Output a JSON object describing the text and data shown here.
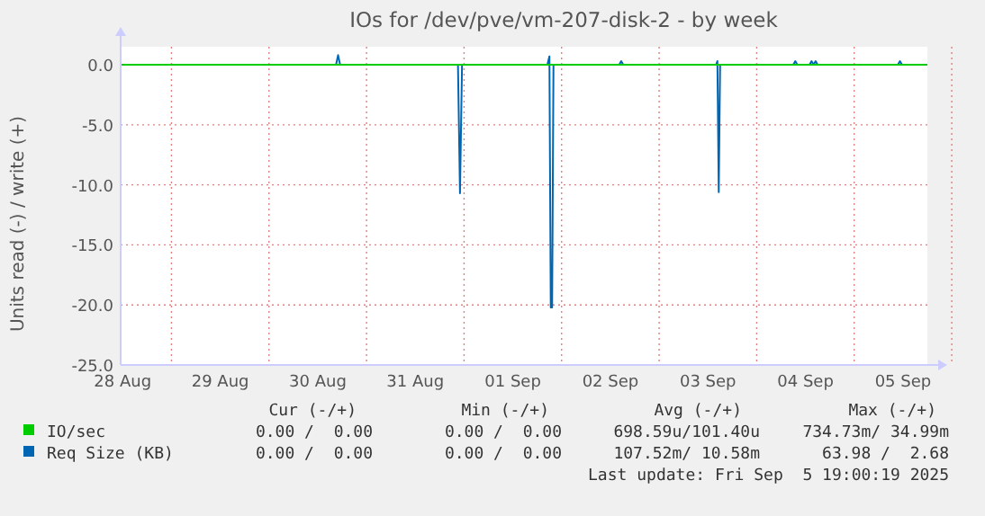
{
  "chart_data": {
    "type": "line",
    "title": "IOs for /dev/pve/vm-207-disk-2 - by week",
    "ylabel": "Units read (-) / write (+)",
    "xlim": [
      "2025-08-28T11:30",
      "2025-09-05T18:00"
    ],
    "xticks": [
      {
        "value": "2025-08-28T12:00",
        "label": "28 Aug"
      },
      {
        "value": "2025-08-29T12:00",
        "label": "29 Aug"
      },
      {
        "value": "2025-08-30T12:00",
        "label": "30 Aug"
      },
      {
        "value": "2025-08-31T12:00",
        "label": "31 Aug"
      },
      {
        "value": "2025-09-01T12:00",
        "label": "01 Sep"
      },
      {
        "value": "2025-09-02T12:00",
        "label": "02 Sep"
      },
      {
        "value": "2025-09-03T12:00",
        "label": "03 Sep"
      },
      {
        "value": "2025-09-04T12:00",
        "label": "04 Sep"
      },
      {
        "value": "2025-09-05T12:00",
        "label": "05 Sep"
      }
    ],
    "ylim": [
      -25,
      1.5
    ],
    "yticks": [
      {
        "value": -25,
        "label": "-25.0"
      },
      {
        "value": -20,
        "label": "-20.0"
      },
      {
        "value": -15,
        "label": "-15.0"
      },
      {
        "value": -10,
        "label": "-10.0"
      },
      {
        "value": -5,
        "label": "-5.0"
      },
      {
        "value": 0,
        "label": "0.0"
      }
    ],
    "grid": true,
    "legend": "bottom",
    "series": [
      {
        "name": "IO/sec",
        "color": "#00cc00",
        "x": [
          "2025-08-28T11:30",
          "2025-09-05T18:00"
        ],
        "values": [
          0,
          0
        ]
      },
      {
        "name": "Req Size (KB)",
        "color": "#0066b3",
        "x": [
          "2025-08-28T11:30",
          "2025-08-30T16:30",
          "2025-08-30T17:00",
          "2025-08-30T17:30",
          "2025-08-31T22:30",
          "2025-08-31T23:00",
          "2025-08-31T23:30",
          "2025-09-01T20:30",
          "2025-09-01T21:00",
          "2025-09-01T21:20",
          "2025-09-01T21:40",
          "2025-09-01T22:00",
          "2025-09-02T14:10",
          "2025-09-02T14:40",
          "2025-09-02T15:10",
          "2025-09-03T14:00",
          "2025-09-03T14:20",
          "2025-09-03T14:40",
          "2025-09-03T15:00",
          "2025-09-04T09:00",
          "2025-09-04T09:30",
          "2025-09-04T10:00",
          "2025-09-04T13:00",
          "2025-09-04T13:30",
          "2025-09-04T14:00",
          "2025-09-04T14:30",
          "2025-09-04T15:00",
          "2025-09-05T10:45",
          "2025-09-05T11:15",
          "2025-09-05T11:45",
          "2025-09-05T18:00"
        ],
        "values": [
          0,
          0,
          0.8,
          0,
          0,
          -10.7,
          0,
          0,
          0.7,
          -20.2,
          -20.2,
          0,
          0,
          0.3,
          0,
          0,
          0.3,
          -10.6,
          0,
          0,
          0.3,
          0,
          0,
          0.3,
          0,
          0.3,
          0,
          0,
          0.3,
          0,
          0
        ]
      }
    ],
    "annotations": [
      "Cur (-/+)",
      "Min (-/+)",
      "Avg (-/+)",
      "Max (-/+)",
      "0.00 /  0.00",
      "0.00 /  0.00",
      "698.59u/101.40u",
      "734.73m/ 34.99m",
      "0.00 /  0.00",
      "0.00 /  0.00",
      "107.52m/ 10.58m",
      "63.98 /  2.68",
      "Last update: Fri Sep  5 19:00:19 2025"
    ]
  }
}
